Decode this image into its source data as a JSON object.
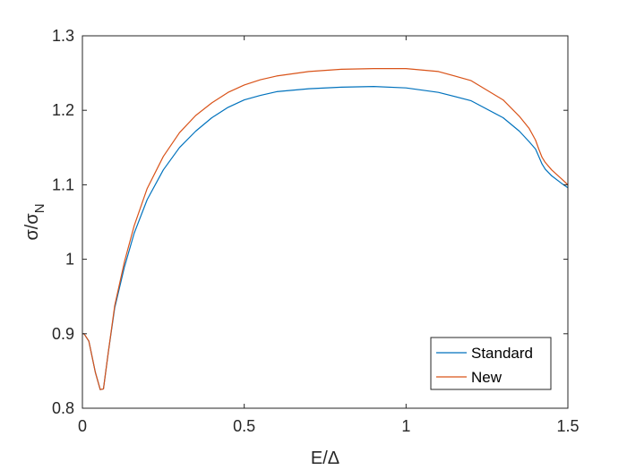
{
  "chart_data": {
    "type": "line",
    "title": "",
    "xlabel": "E/Δ",
    "ylabel_main": "σ/σ",
    "ylabel_sub": "N",
    "xlim": [
      0,
      1.5
    ],
    "ylim": [
      0.8,
      1.3
    ],
    "grid": false,
    "legend_position": "bottom-right",
    "x_ticks": [
      0,
      0.5,
      1,
      1.5
    ],
    "x_tick_labels": [
      "0",
      "0.5",
      "1",
      "1.5"
    ],
    "y_ticks": [
      0.8,
      0.9,
      1,
      1.1,
      1.2,
      1.3
    ],
    "y_tick_labels": [
      "0.8",
      "0.9",
      "1",
      "1.1",
      "1.2",
      "1.3"
    ],
    "series": [
      {
        "name": "Standard",
        "color": "#0072BD",
        "x": [
          0,
          0.005,
          0.02,
          0.04,
          0.055,
          0.065,
          0.08,
          0.1,
          0.13,
          0.16,
          0.2,
          0.25,
          0.3,
          0.35,
          0.4,
          0.45,
          0.5,
          0.55,
          0.6,
          0.7,
          0.8,
          0.9,
          1.0,
          1.1,
          1.2,
          1.3,
          1.35,
          1.38,
          1.4,
          1.41,
          1.42,
          1.43,
          1.45,
          1.48,
          1.5
        ],
        "y": [
          0.9,
          0.9,
          0.89,
          0.848,
          0.825,
          0.826,
          0.875,
          0.935,
          0.99,
          1.035,
          1.08,
          1.12,
          1.15,
          1.172,
          1.19,
          1.204,
          1.214,
          1.22,
          1.225,
          1.229,
          1.231,
          1.232,
          1.23,
          1.224,
          1.213,
          1.19,
          1.172,
          1.158,
          1.148,
          1.138,
          1.128,
          1.121,
          1.112,
          1.102,
          1.096
        ]
      },
      {
        "name": "New",
        "color": "#D95319",
        "x": [
          0,
          0.005,
          0.02,
          0.04,
          0.055,
          0.065,
          0.08,
          0.1,
          0.13,
          0.16,
          0.2,
          0.25,
          0.3,
          0.35,
          0.4,
          0.45,
          0.5,
          0.55,
          0.6,
          0.7,
          0.8,
          0.9,
          1.0,
          1.1,
          1.2,
          1.3,
          1.35,
          1.38,
          1.4,
          1.41,
          1.42,
          1.43,
          1.45,
          1.48,
          1.5
        ],
        "y": [
          0.9,
          0.9,
          0.89,
          0.848,
          0.825,
          0.826,
          0.875,
          0.938,
          0.997,
          1.045,
          1.095,
          1.138,
          1.17,
          1.193,
          1.21,
          1.224,
          1.234,
          1.241,
          1.246,
          1.252,
          1.255,
          1.256,
          1.256,
          1.252,
          1.24,
          1.214,
          1.192,
          1.176,
          1.16,
          1.148,
          1.137,
          1.13,
          1.12,
          1.108,
          1.1
        ]
      }
    ]
  }
}
